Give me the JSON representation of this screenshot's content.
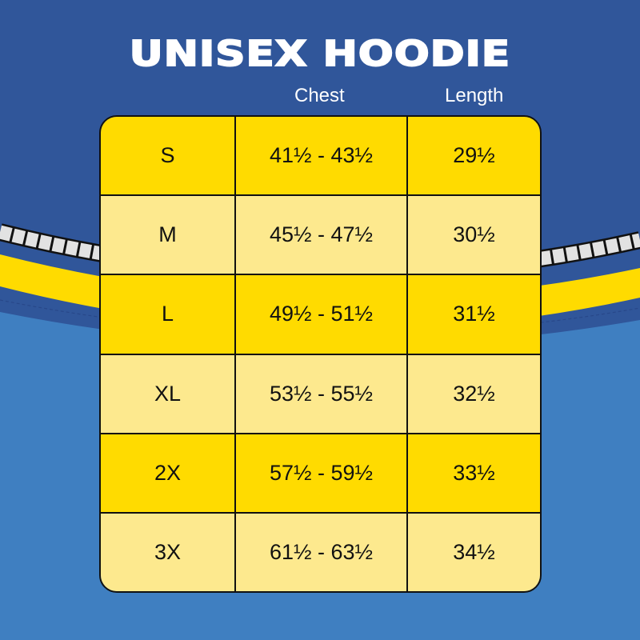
{
  "title": "UNISEX HOODIE",
  "headers": {
    "chest": "Chest",
    "length": "Length"
  },
  "rows": [
    {
      "size": "S",
      "chest": "41½ - 43½",
      "length": "29½"
    },
    {
      "size": "M",
      "chest": "45½ - 47½",
      "length": "30½"
    },
    {
      "size": "L",
      "chest": "49½ - 51½",
      "length": "31½"
    },
    {
      "size": "XL",
      "chest": "53½ - 55½",
      "length": "32½"
    },
    {
      "size": "2X",
      "chest": "57½ - 59½",
      "length": "33½"
    },
    {
      "size": "3X",
      "chest": "61½ - 63½",
      "length": "34½"
    }
  ],
  "colors": {
    "dark_blue": "#30569a",
    "light_blue": "#3f7fc1",
    "yellow": "#ffdb00",
    "pale_yellow": "#fde98e"
  }
}
